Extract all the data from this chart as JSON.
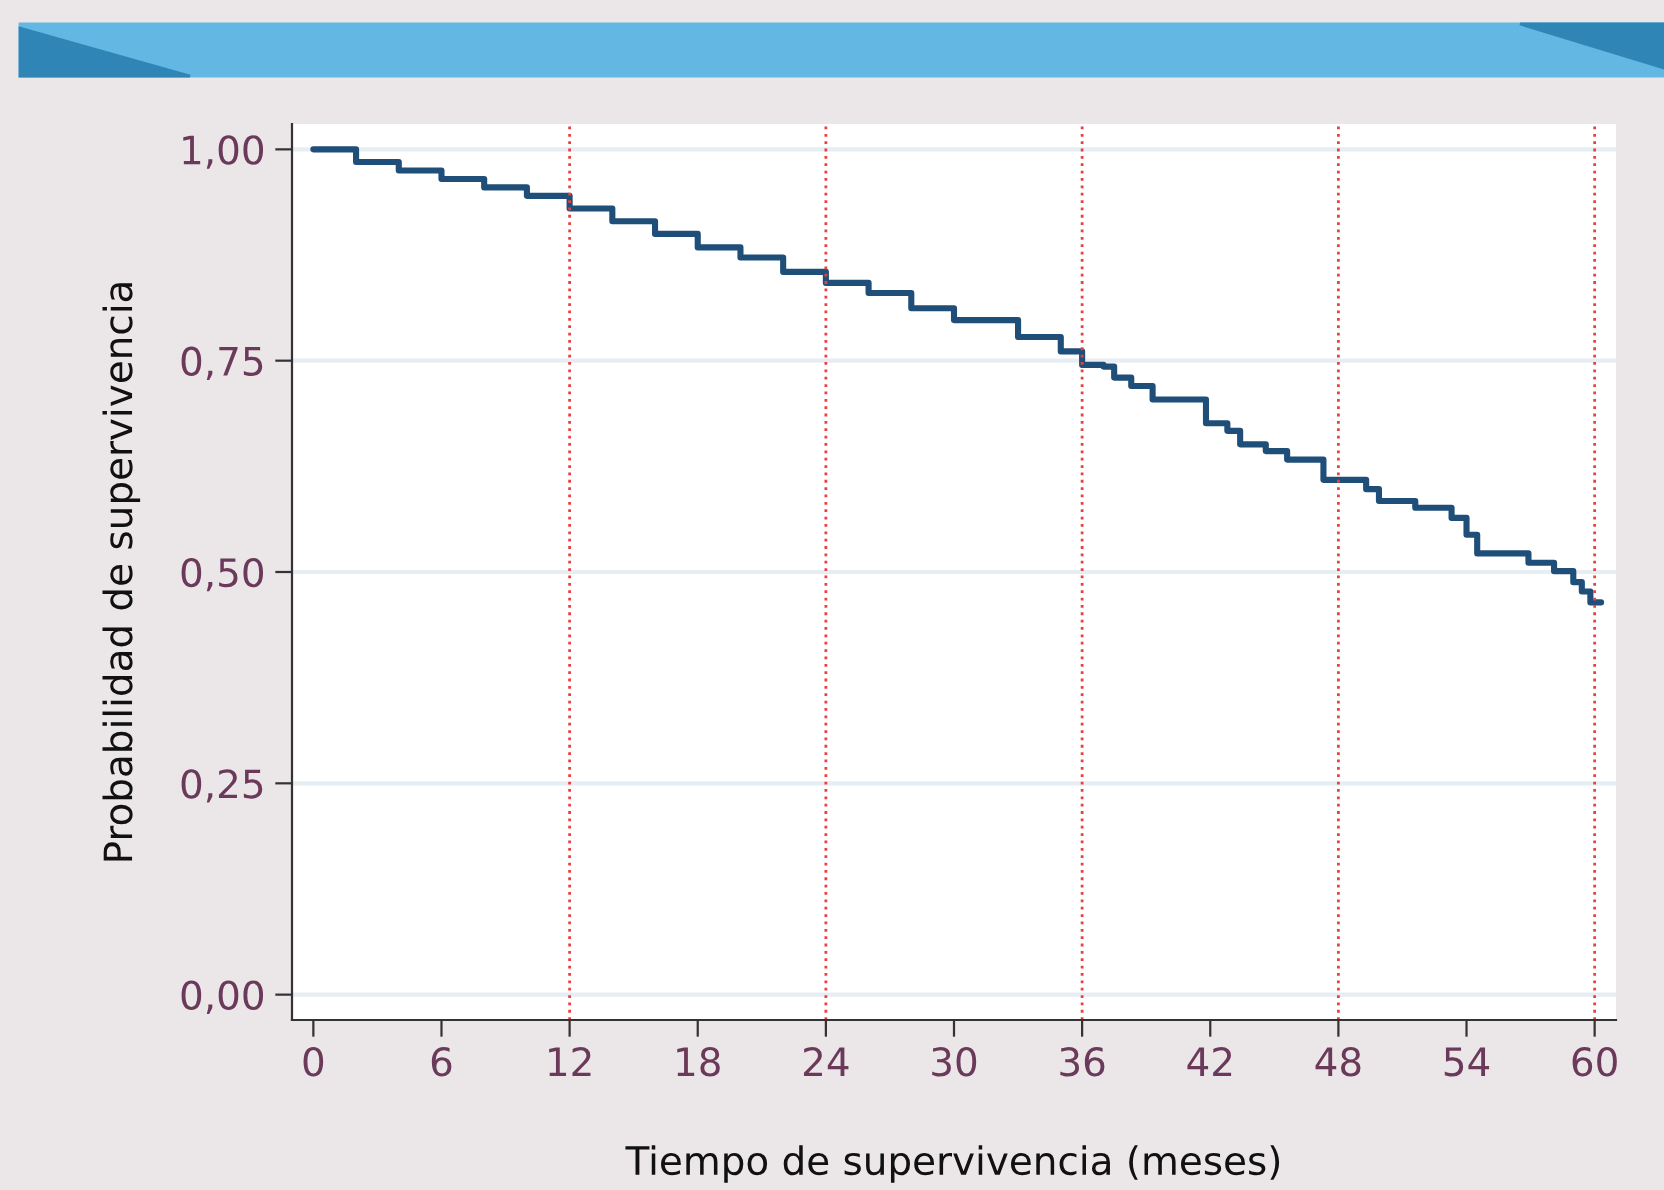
{
  "chart_data": {
    "type": "step",
    "xlabel": "Tiempo de supervivencia (meses)",
    "ylabel": "Probabilidad de supervivencia",
    "series": [
      {
        "color": "#1f4e79",
        "x": [
          0,
          2,
          4,
          6,
          8,
          10,
          12,
          14,
          16,
          18,
          20,
          22,
          24,
          26,
          28,
          30,
          33,
          35,
          36,
          37,
          37.5,
          38.3,
          39.3,
          41.2,
          41.8,
          42.8,
          43.4,
          44.6,
          45.6,
          47.3,
          49.3,
          49.9,
          51.6,
          53.3,
          54,
          54.5,
          56.9,
          58.1,
          59,
          59.4,
          59.8,
          60.3
        ],
        "values": [
          1.0,
          0.985,
          0.975,
          0.965,
          0.955,
          0.945,
          0.93,
          0.915,
          0.9,
          0.884,
          0.872,
          0.855,
          0.842,
          0.83,
          0.812,
          0.798,
          0.778,
          0.761,
          0.745,
          0.743,
          0.73,
          0.72,
          0.704,
          0.704,
          0.676,
          0.667,
          0.651,
          0.643,
          0.633,
          0.609,
          0.598,
          0.584,
          0.576,
          0.564,
          0.544,
          0.522,
          0.511,
          0.501,
          0.488,
          0.477,
          0.464,
          0.464
        ]
      }
    ],
    "xlim": [
      -1,
      61
    ],
    "xticks": [
      0,
      6,
      12,
      18,
      24,
      30,
      36,
      42,
      48,
      54,
      60
    ],
    "ylim": [
      -0.03,
      1.03
    ],
    "yticks": [
      {
        "value": 0,
        "label": "0,00"
      },
      {
        "value": 0.25,
        "label": "0,25"
      },
      {
        "value": 0.5,
        "label": "0,50"
      },
      {
        "value": 0.75,
        "label": "0,75"
      },
      {
        "value": 1,
        "label": "1,00"
      }
    ],
    "grid": "y",
    "ref_lines": [
      {
        "axis": "x",
        "value": 12,
        "color": "#e8413f",
        "line_style": "dotted"
      },
      {
        "axis": "x",
        "value": 24,
        "color": "#e8413f",
        "line_style": "dotted"
      },
      {
        "axis": "x",
        "value": 36,
        "color": "#e8413f",
        "line_style": "dotted"
      },
      {
        "axis": "x",
        "value": 48,
        "color": "#e8413f",
        "line_style": "dotted"
      },
      {
        "axis": "x",
        "value": 60,
        "color": "#e8413f",
        "line_style": "dotted"
      }
    ]
  }
}
